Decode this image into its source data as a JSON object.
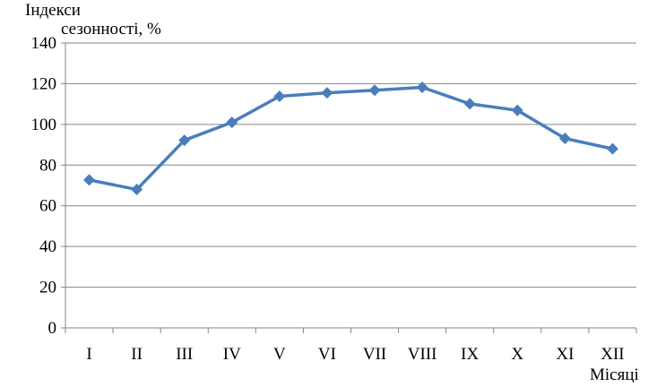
{
  "chart_data": {
    "type": "line",
    "ylabel": "Індекси сезонності, %",
    "ylabel_lines": [
      "Індекси",
      "сезонності, %"
    ],
    "xlabel": "Місяці",
    "categories": [
      "I",
      "II",
      "III",
      "IV",
      "V",
      "VI",
      "VII",
      "VIII",
      "IX",
      "X",
      "XI",
      "XII"
    ],
    "series": [
      {
        "values": [
          72.7,
          68.0,
          92.2,
          101.0,
          113.8,
          115.5,
          116.8,
          118.2,
          110.1,
          106.9,
          93.1,
          88.0
        ]
      }
    ],
    "ylim": [
      0,
      140
    ],
    "yticks": [
      0,
      20,
      40,
      60,
      80,
      100,
      120,
      140
    ],
    "grid": "horizontal",
    "marker": "diamond",
    "colors": {
      "line": "#4a7ebb",
      "grid": "#868686"
    }
  }
}
